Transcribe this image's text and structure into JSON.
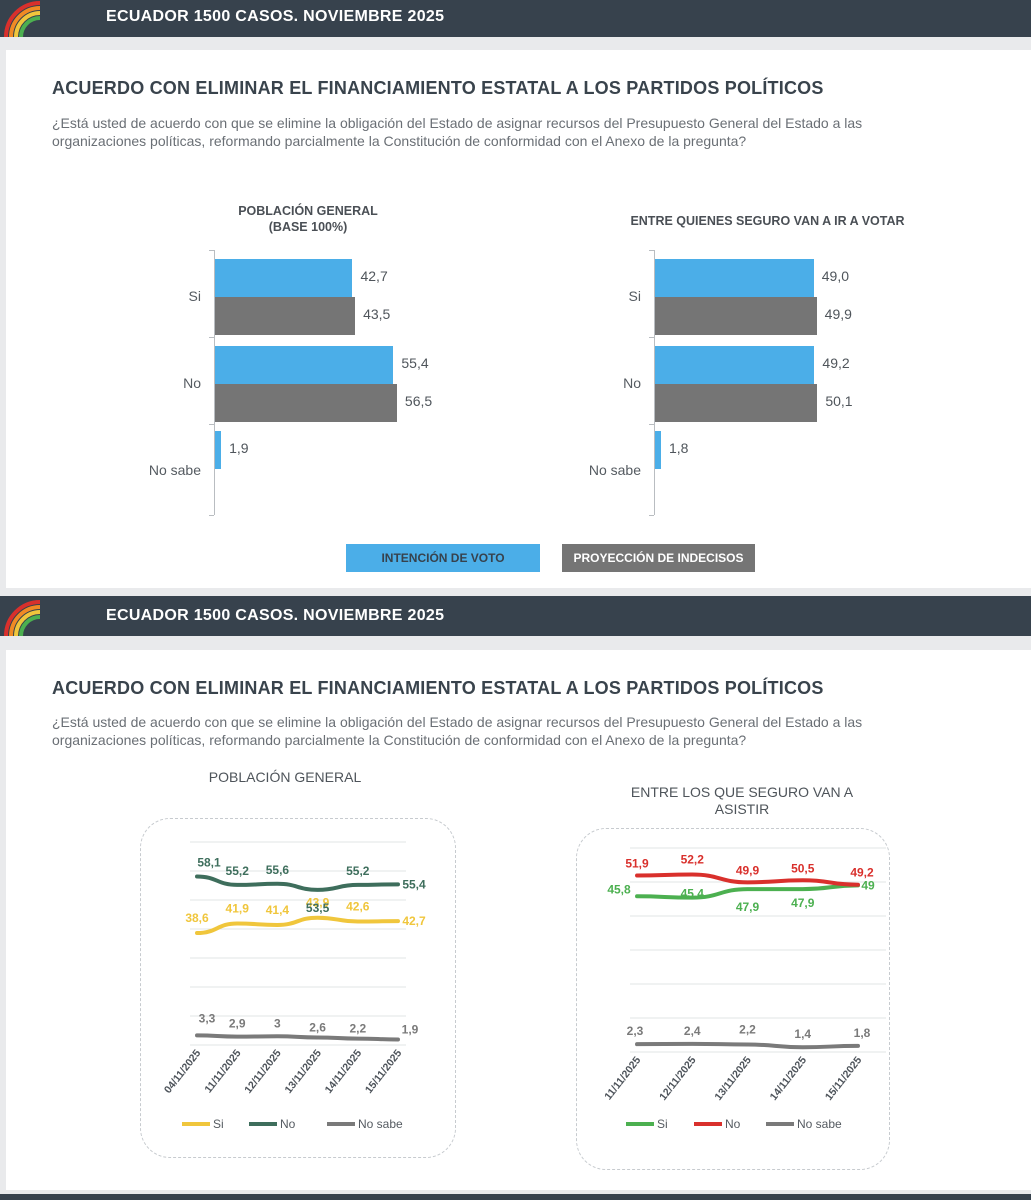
{
  "header": {
    "title": "ECUADOR 1500 CASOS. NOVIEMBRE 2025"
  },
  "colors": {
    "band": "#37424d",
    "blue": "#4baee8",
    "gray": "#757575",
    "si_yellow": "#f0c63c",
    "no_green": "#3e6e5c",
    "nosabe_gray": "#7a7a7a",
    "si_green": "#4cb050",
    "no_red": "#d9302c"
  },
  "section1": {
    "title": "ACUERDO CON ELIMINAR EL FINANCIAMIENTO ESTATAL A LOS PARTIDOS POLÍTICOS",
    "question": "¿Está usted de acuerdo con que se elimine la obligación del Estado de asignar recursos del Presupuesto General del Estado a las organizaciones políticas, reformando parcialmente la Constitución de conformidad con el Anexo de la pregunta?",
    "legend": {
      "intencion": "INTENCIÓN DE VOTO",
      "proyeccion": "PROYECCIÓN DE INDECISOS"
    }
  },
  "section2": {
    "title": "ACUERDO CON ELIMINAR EL FINANCIAMIENTO ESTATAL A LOS PARTIDOS POLÍTICOS",
    "question": "¿Está usted de acuerdo con que se elimine la obligación del Estado de asignar recursos del Presupuesto General del Estado a las organizaciones políticas, reformando parcialmente la Constitución de conformidad con el Anexo de la pregunta?"
  },
  "chart_data": [
    {
      "type": "bar",
      "title": "POBLACIÓN GENERAL",
      "subtitle": "(BASE 100%)",
      "categories": [
        "Si",
        "No",
        "No sabe"
      ],
      "series": [
        {
          "name": "INTENCIÓN DE VOTO",
          "values": [
            42.7,
            55.4,
            1.9
          ],
          "labels": [
            "42,7",
            "55,4",
            "1,9"
          ]
        },
        {
          "name": "PROYECCIÓN DE INDECISOS",
          "values": [
            43.5,
            56.5,
            null
          ],
          "labels": [
            "43,5",
            "56,5",
            ""
          ]
        }
      ],
      "orientation": "horizontal"
    },
    {
      "type": "bar",
      "title": "ENTRE QUIENES SEGURO VAN A IR A VOTAR",
      "categories": [
        "Si",
        "No",
        "No sabe"
      ],
      "series": [
        {
          "name": "INTENCIÓN DE VOTO",
          "values": [
            49.0,
            49.2,
            1.8
          ],
          "labels": [
            "49,0",
            "49,2",
            "1,8"
          ]
        },
        {
          "name": "PROYECCIÓN DE INDECISOS",
          "values": [
            49.9,
            50.1,
            null
          ],
          "labels": [
            "49,9",
            "50,1",
            ""
          ]
        }
      ],
      "orientation": "horizontal"
    },
    {
      "type": "line",
      "title": "POBLACIÓN GENERAL",
      "x": [
        "04/11/2025",
        "11/11/2025",
        "12/11/2025",
        "13/11/2025",
        "14/11/2025",
        "15/11/2025"
      ],
      "ylim": [
        0,
        70
      ],
      "series": [
        {
          "name": "Si",
          "values": [
            38.6,
            41.9,
            41.4,
            43.9,
            42.6,
            42.7
          ],
          "labels": [
            "38,6",
            "41,9",
            "41,4",
            "43,9",
            "42,6",
            "42,7"
          ],
          "color": "#f0c63c"
        },
        {
          "name": "No",
          "values": [
            58.1,
            55.2,
            55.6,
            53.5,
            55.2,
            55.4
          ],
          "labels": [
            "58,1",
            "55,2",
            "55,6",
            "53,5",
            "55,2",
            "55,4"
          ],
          "color": "#3e6e5c"
        },
        {
          "name": "No sabe",
          "values": [
            3.3,
            2.9,
            3.0,
            2.6,
            2.2,
            1.9
          ],
          "labels": [
            "3,3",
            "2,9",
            "3",
            "2,6",
            "2,2",
            "1,9"
          ],
          "color": "#7a7a7a"
        }
      ]
    },
    {
      "type": "line",
      "title": "ENTRE LOS QUE SEGURO VAN A ASISTIR",
      "x": [
        "11/11/2025",
        "12/11/2025",
        "13/11/2025",
        "14/11/2025",
        "15/11/2025"
      ],
      "ylim": [
        0,
        60
      ],
      "series": [
        {
          "name": "Si",
          "values": [
            45.8,
            45.4,
            47.9,
            47.9,
            49
          ],
          "labels": [
            "45,8",
            "45,4",
            "47,9",
            "47,9",
            "49"
          ],
          "color": "#4cb050"
        },
        {
          "name": "No",
          "values": [
            51.9,
            52.2,
            49.9,
            50.5,
            49.2
          ],
          "labels": [
            "51,9",
            "52,2",
            "49,9",
            "50,5",
            "49,2"
          ],
          "color": "#d9302c"
        },
        {
          "name": "No sabe",
          "values": [
            2.3,
            2.4,
            2.2,
            1.4,
            1.8
          ],
          "labels": [
            "2,3",
            "2,4",
            "2,2",
            "1,4",
            "1,8"
          ],
          "color": "#7a7a7a"
        }
      ]
    }
  ]
}
